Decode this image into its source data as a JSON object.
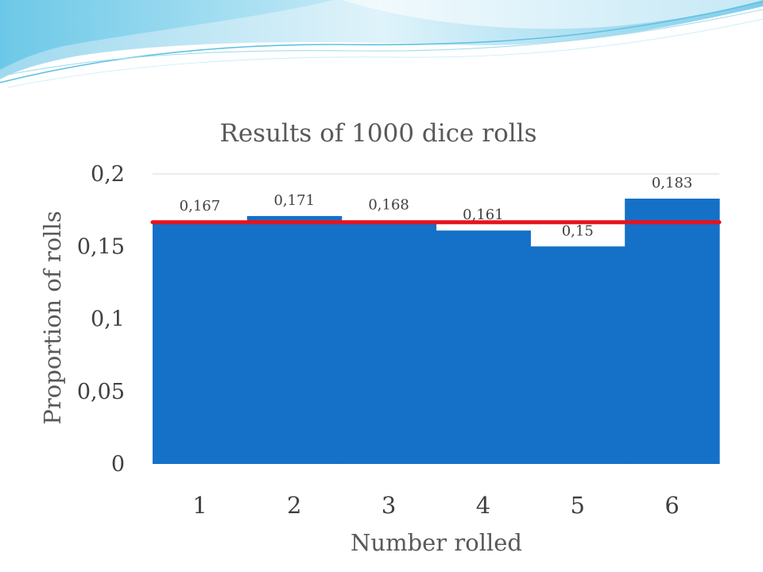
{
  "colors": {
    "bar": "#1570c8",
    "reference_line": "#e8131c",
    "gridline": "#d9d9d9",
    "text": "#404040"
  },
  "chart_data": {
    "type": "bar",
    "title": "Results of 1000 dice rolls",
    "xlabel": "Number rolled",
    "ylabel": "Proportion of rolls",
    "categories": [
      "1",
      "2",
      "3",
      "4",
      "5",
      "6"
    ],
    "values": [
      0.167,
      0.171,
      0.168,
      0.161,
      0.15,
      0.183
    ],
    "data_labels": [
      "0,167",
      "0,171",
      "0,168",
      "0,161",
      "0,15",
      "0,183"
    ],
    "ylim": [
      0,
      0.2
    ],
    "yticks": [
      0,
      0.05,
      0.1,
      0.15,
      0.2
    ],
    "ytick_labels": [
      "0",
      "0,05",
      "0,1",
      "0,15",
      "0,2"
    ],
    "reference_line": {
      "type": "horizontal",
      "y": 0.1667
    },
    "bar_gap": 0,
    "grid": true,
    "legend": "none"
  }
}
